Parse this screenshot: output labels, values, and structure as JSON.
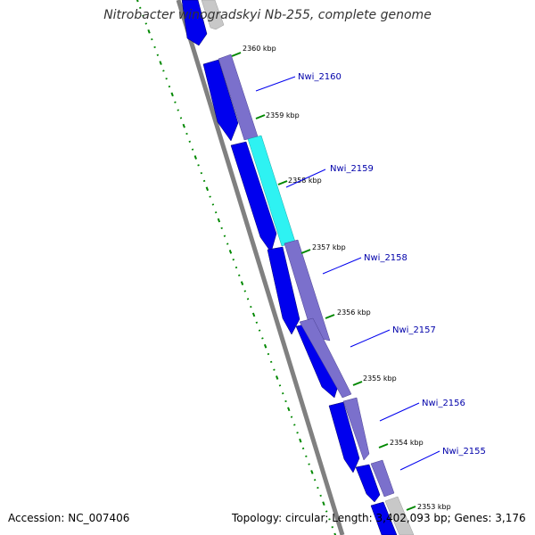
{
  "title": "Nitrobacter winogradskyi Nb-255, complete genome",
  "footer": {
    "accession": "Accession: NC_007406",
    "summary": "Topology: circular; Length: 3,402,093 bp; Genes: 3,176"
  },
  "colors": {
    "backbone": "#808080",
    "cds_forward": "#7b70cc",
    "cds_forward_highlight": "#2ef2f2",
    "cds_reverse": "#0000ee",
    "gc_skew_dash": "#008800",
    "label_line": "#0000ee",
    "label_text": "#0000aa",
    "tick": "#008800"
  },
  "ticks": [
    "2360 kbp",
    "2359 kbp",
    "2358 kbp",
    "2357 kbp",
    "2356 kbp",
    "2355 kbp",
    "2354 kbp",
    "2353 kbp"
  ],
  "gene_labels": [
    "Nwi_2160",
    "Nwi_2159",
    "Nwi_2158",
    "Nwi_2157",
    "Nwi_2156",
    "Nwi_2155"
  ]
}
